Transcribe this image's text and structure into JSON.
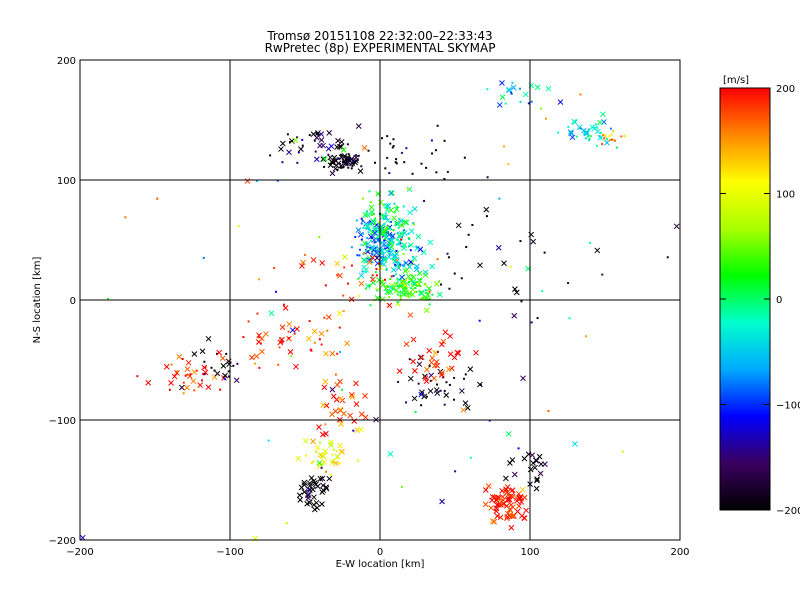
{
  "chart_data": {
    "type": "scatter",
    "title": "Tromsø 20151108 22:32:00–22:33:43",
    "subtitle": "RwPretec (8p) EXPERIMENTAL SKYMAP",
    "xlabel": "E-W location [km]",
    "ylabel": "N-S location [km]",
    "xlim": [
      -200,
      200
    ],
    "ylim": [
      -200,
      200
    ],
    "x_ticks": [
      -200,
      -100,
      0,
      100,
      200
    ],
    "y_ticks": [
      -200,
      -100,
      0,
      100,
      200
    ],
    "grid": true,
    "colorbar": {
      "label": "[m/s]",
      "range": [
        -200,
        200
      ],
      "ticks": [
        -200,
        -100,
        0,
        100,
        200
      ],
      "colors": [
        "#000000",
        "#3a0060",
        "#0000ff",
        "#00aaff",
        "#00ffcc",
        "#00ff00",
        "#aaff00",
        "#ffff00",
        "#ff8800",
        "#ff0000"
      ]
    },
    "markers": [
      "x",
      "dot"
    ],
    "clusters": [
      {
        "x": -25,
        "y": 115,
        "spread": [
          10,
          6
        ],
        "v": -200,
        "n": 60,
        "marker": "mix"
      },
      {
        "x": -40,
        "y": 130,
        "spread": [
          25,
          12
        ],
        "v": -180,
        "n": 40,
        "marker": "mix"
      },
      {
        "x": 10,
        "y": 120,
        "spread": [
          40,
          20
        ],
        "v": -200,
        "n": 30,
        "marker": "dot"
      },
      {
        "x": 0,
        "y": 50,
        "spread": [
          15,
          15
        ],
        "v": -80,
        "n": 110,
        "marker": "mix"
      },
      {
        "x": 5,
        "y": 65,
        "spread": [
          15,
          20
        ],
        "v": 0,
        "n": 100,
        "marker": "mix"
      },
      {
        "x": 15,
        "y": 10,
        "spread": [
          20,
          12
        ],
        "v": 30,
        "n": 120,
        "marker": "mix"
      },
      {
        "x": 10,
        "y": 35,
        "spread": [
          20,
          12
        ],
        "v": -40,
        "n": 80,
        "marker": "mix"
      },
      {
        "x": 140,
        "y": 140,
        "spread": [
          15,
          10
        ],
        "v": -40,
        "n": 40,
        "marker": "mix"
      },
      {
        "x": 155,
        "y": 135,
        "spread": [
          8,
          6
        ],
        "v": 130,
        "n": 15,
        "marker": "dot"
      },
      {
        "x": 90,
        "y": 175,
        "spread": [
          20,
          15
        ],
        "v": -60,
        "n": 20,
        "marker": "mix"
      },
      {
        "x": -35,
        "y": -130,
        "spread": [
          12,
          12
        ],
        "v": 100,
        "n": 40,
        "marker": "mix"
      },
      {
        "x": -45,
        "y": -160,
        "spread": [
          8,
          12
        ],
        "v": -200,
        "n": 35,
        "marker": "x"
      },
      {
        "x": -25,
        "y": -90,
        "spread": [
          15,
          20
        ],
        "v": 180,
        "n": 30,
        "marker": "x"
      },
      {
        "x": 85,
        "y": -170,
        "spread": [
          12,
          15
        ],
        "v": 200,
        "n": 70,
        "marker": "x"
      },
      {
        "x": 100,
        "y": -140,
        "spread": [
          10,
          15
        ],
        "v": -200,
        "n": 20,
        "marker": "x"
      },
      {
        "x": -130,
        "y": -60,
        "spread": [
          25,
          15
        ],
        "v": 200,
        "n": 35,
        "marker": "mix"
      },
      {
        "x": -110,
        "y": -55,
        "spread": [
          20,
          15
        ],
        "v": -200,
        "n": 20,
        "marker": "mix"
      },
      {
        "x": 40,
        "y": -70,
        "spread": [
          25,
          20
        ],
        "v": -180,
        "n": 40,
        "marker": "mix"
      },
      {
        "x": 40,
        "y": -50,
        "spread": [
          20,
          20
        ],
        "v": 200,
        "n": 30,
        "marker": "x"
      },
      {
        "x": -60,
        "y": -30,
        "spread": [
          30,
          25
        ],
        "v": 180,
        "n": 50,
        "marker": "mix"
      },
      {
        "x": -20,
        "y": 20,
        "spread": [
          40,
          30
        ],
        "v": 190,
        "n": 30,
        "marker": "mix"
      },
      {
        "x": 80,
        "y": 30,
        "spread": [
          40,
          40
        ],
        "v": -200,
        "n": 25,
        "marker": "mix"
      },
      {
        "x": 0,
        "y": 0,
        "spread": [
          180,
          180
        ],
        "v": 0,
        "n": 90,
        "marker": "mix",
        "random_v": true
      }
    ]
  }
}
